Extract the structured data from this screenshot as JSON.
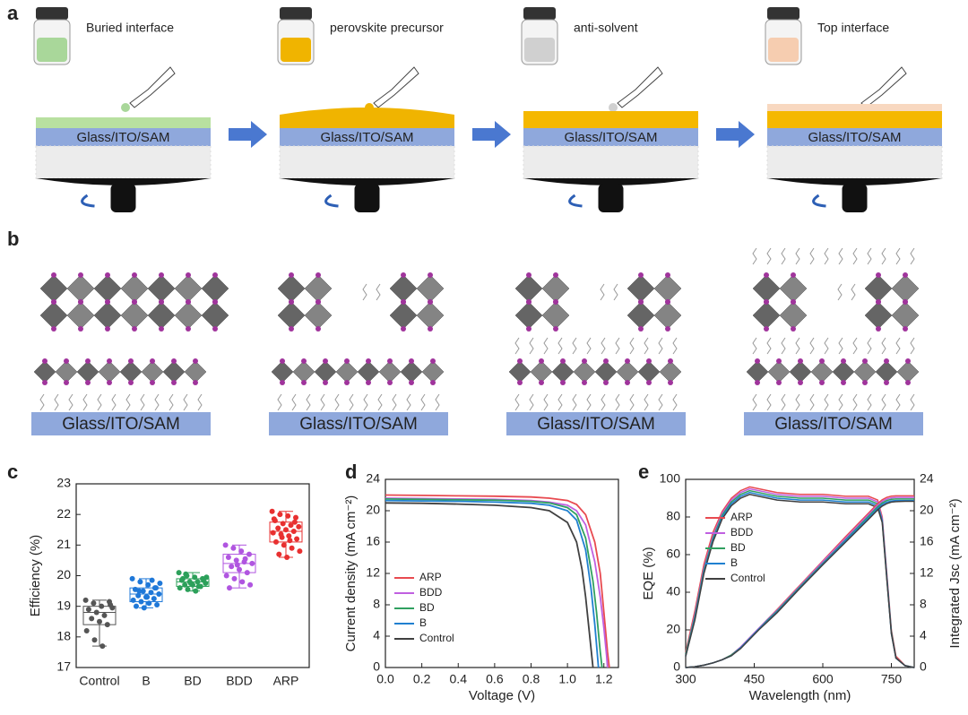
{
  "panel_labels": [
    "a",
    "b",
    "c",
    "d",
    "e"
  ],
  "schematic_a": {
    "steps": [
      "Buried interface",
      "perovskite precursor",
      "anti-solvent",
      "Top interface"
    ],
    "substrate_labels": [
      "Glass/ITO/SAM",
      "Glass/ITO/SAM",
      "Glass/ITO/SAM",
      "Glass/ITO/SAM"
    ]
  },
  "schematic_b": {
    "substrate_labels": [
      "Glass/ITO/SAM",
      "Glass/ITO/SAM",
      "Glass/ITO/SAM",
      "Glass/ITO/SAM"
    ]
  },
  "chart_data": [
    {
      "type": "box",
      "y_label": "Efficiency (%)",
      "categories": [
        "Control",
        "B",
        "BD",
        "BDD",
        "ARP"
      ],
      "colors": [
        "#555555",
        "#1f78d8",
        "#2ca05a",
        "#b055e0",
        "#e83030"
      ],
      "ylim": [
        17,
        23
      ],
      "yticks": [
        17,
        18,
        19,
        20,
        21,
        22,
        23
      ],
      "points": [
        [
          19.2,
          19.1,
          19.0,
          19.15,
          18.9,
          18.8,
          18.7,
          18.95,
          18.6,
          18.5,
          18.4,
          18.2,
          17.9,
          17.7,
          19.05
        ],
        [
          19.9,
          19.8,
          19.7,
          19.6,
          19.55,
          19.5,
          19.45,
          19.4,
          19.35,
          19.3,
          19.25,
          19.2,
          19.15,
          19.1,
          19.05,
          19.0,
          18.95,
          19.85,
          19.75,
          19.5,
          19.3,
          19.6
        ],
        [
          20.1,
          20.0,
          19.95,
          19.9,
          19.85,
          19.8,
          19.8,
          19.75,
          19.7,
          19.7,
          19.65,
          19.6,
          19.55,
          19.5,
          19.85,
          19.9,
          19.75,
          19.65,
          19.95,
          20.05
        ],
        [
          21.0,
          20.9,
          20.8,
          20.7,
          20.6,
          20.5,
          20.45,
          20.4,
          20.3,
          20.2,
          20.1,
          20.0,
          19.9,
          19.8,
          19.7,
          19.6,
          20.35,
          20.55
        ],
        [
          22.1,
          22.0,
          21.95,
          21.9,
          21.8,
          21.7,
          21.65,
          21.6,
          21.55,
          21.5,
          21.45,
          21.4,
          21.35,
          21.3,
          21.2,
          21.1,
          21.0,
          20.9,
          20.8,
          20.7,
          20.6,
          21.75,
          21.85,
          21.25,
          21.15
        ]
      ],
      "box": [
        {
          "min": 17.7,
          "q1": 18.4,
          "median": 18.8,
          "q3": 19.0,
          "max": 19.2
        },
        {
          "min": 18.95,
          "q1": 19.15,
          "median": 19.4,
          "q3": 19.6,
          "max": 19.9
        },
        {
          "min": 19.5,
          "q1": 19.65,
          "median": 19.8,
          "q3": 19.9,
          "max": 20.1
        },
        {
          "min": 19.6,
          "q1": 20.1,
          "median": 20.4,
          "q3": 20.7,
          "max": 21.0
        },
        {
          "min": 20.6,
          "q1": 21.1,
          "median": 21.45,
          "q3": 21.75,
          "max": 22.1
        }
      ]
    },
    {
      "type": "line",
      "x_label": "Voltage (V)",
      "y_label": "Current density (mA cm⁻²)",
      "xlim": [
        0,
        1.28
      ],
      "xticks": [
        {
          "value": 0,
          "label": "0.0"
        },
        0.2,
        0.4,
        0.6,
        0.8,
        {
          "value": 1,
          "label": "1.0"
        },
        1.2
      ],
      "ylim": [
        0,
        24
      ],
      "yticks": [
        0,
        4,
        8,
        12,
        16,
        20,
        24
      ],
      "legend": "center left",
      "series": [
        {
          "name": "ARP",
          "color": "#e84a50",
          "x": [
            0,
            0.2,
            0.4,
            0.6,
            0.8,
            0.9,
            1.0,
            1.05,
            1.1,
            1.15,
            1.18,
            1.2,
            1.22,
            1.23
          ],
          "values": [
            22.0,
            21.95,
            21.9,
            21.85,
            21.75,
            21.6,
            21.3,
            20.8,
            19.5,
            16.0,
            12.0,
            7.0,
            2.0,
            0
          ]
        },
        {
          "name": "BDD",
          "color": "#c060e0",
          "x": [
            0,
            0.2,
            0.4,
            0.6,
            0.8,
            0.9,
            1.0,
            1.05,
            1.1,
            1.15,
            1.18,
            1.2,
            1.215,
            1.22
          ],
          "values": [
            21.6,
            21.55,
            21.5,
            21.45,
            21.3,
            21.1,
            20.7,
            20.0,
            18.2,
            13.5,
            9.0,
            5.0,
            1.5,
            0
          ]
        },
        {
          "name": "BD",
          "color": "#30a060",
          "x": [
            0,
            0.2,
            0.4,
            0.6,
            0.8,
            0.9,
            1.0,
            1.05,
            1.1,
            1.14,
            1.16,
            1.18,
            1.19
          ],
          "values": [
            21.5,
            21.45,
            21.4,
            21.35,
            21.2,
            21.0,
            20.4,
            19.5,
            16.5,
            11.0,
            7.0,
            2.0,
            0
          ]
        },
        {
          "name": "B",
          "color": "#2080d0",
          "x": [
            0,
            0.2,
            0.4,
            0.6,
            0.8,
            0.9,
            1.0,
            1.05,
            1.1,
            1.13,
            1.15,
            1.165,
            1.17
          ],
          "values": [
            21.3,
            21.25,
            21.2,
            21.1,
            20.95,
            20.7,
            20.0,
            18.8,
            15.0,
            10.0,
            5.5,
            1.5,
            0
          ]
        },
        {
          "name": "Control",
          "color": "#404040",
          "x": [
            0,
            0.2,
            0.4,
            0.6,
            0.8,
            0.9,
            1.0,
            1.05,
            1.08,
            1.1,
            1.12,
            1.135,
            1.14
          ],
          "values": [
            21.0,
            20.95,
            20.85,
            20.7,
            20.4,
            20.0,
            18.5,
            16.0,
            12.5,
            9.0,
            4.5,
            1.2,
            0
          ]
        }
      ]
    },
    {
      "type": "dual",
      "x_label": "Wavelength (nm)",
      "y_label": "EQE (%)",
      "y2_label": "Integrated Jsc (mA cm⁻²)",
      "xlim": [
        300,
        800
      ],
      "xticks": [
        300,
        450,
        600,
        750
      ],
      "ylim": [
        0,
        100
      ],
      "yticks": [
        0,
        20,
        40,
        60,
        80,
        100
      ],
      "y2lim": [
        0,
        24
      ],
      "y2ticks": [
        0,
        4,
        8,
        12,
        16,
        20,
        24
      ],
      "legend": "upper left",
      "x": [
        300,
        320,
        340,
        360,
        380,
        400,
        420,
        440,
        460,
        480,
        500,
        550,
        600,
        650,
        700,
        720,
        730,
        740,
        750,
        760,
        780,
        800
      ],
      "series": [
        {
          "name": "ARP",
          "color": "#e84a50",
          "values": [
            8,
            30,
            55,
            72,
            83,
            90,
            94,
            96,
            95,
            94,
            93,
            92,
            92,
            91,
            91,
            89,
            80,
            50,
            20,
            6,
            1,
            0
          ]
        },
        {
          "name": "BDD",
          "color": "#c060e0",
          "values": [
            7,
            28,
            53,
            70,
            82,
            89,
            93,
            95,
            94,
            93,
            92,
            91,
            91,
            90,
            90,
            88,
            79,
            49,
            19,
            5,
            1,
            0
          ]
        },
        {
          "name": "BD",
          "color": "#30a060",
          "values": [
            7,
            27,
            52,
            69,
            81,
            88,
            92,
            94,
            93,
            92,
            91,
            90,
            90,
            89,
            89,
            87,
            78,
            48,
            19,
            5,
            1,
            0
          ]
        },
        {
          "name": "B",
          "color": "#2080d0",
          "values": [
            6,
            26,
            51,
            68,
            80,
            87,
            91,
            93,
            92,
            91,
            90,
            89,
            89,
            88,
            88,
            86,
            78,
            48,
            18,
            5,
            1,
            0
          ]
        },
        {
          "name": "Control",
          "color": "#404040",
          "values": [
            6,
            25,
            50,
            67,
            79,
            86,
            90,
            92,
            91,
            90,
            89,
            88,
            88,
            87,
            87,
            85,
            77,
            47,
            18,
            5,
            1,
            0
          ]
        }
      ],
      "jsc_series": [
        {
          "color": "#e84a50",
          "axis": "y2",
          "values": [
            0,
            0.1,
            0.3,
            0.6,
            1.0,
            1.6,
            2.6,
            3.8,
            5.0,
            6.2,
            7.4,
            10.5,
            13.6,
            16.7,
            19.7,
            20.9,
            21.4,
            21.7,
            21.85,
            21.9,
            21.9,
            21.9
          ]
        },
        {
          "color": "#c060e0",
          "axis": "y2",
          "values": [
            0,
            0.1,
            0.3,
            0.6,
            1.0,
            1.6,
            2.6,
            3.8,
            5.0,
            6.2,
            7.3,
            10.4,
            13.5,
            16.5,
            19.5,
            20.7,
            21.2,
            21.5,
            21.65,
            21.7,
            21.7,
            21.7
          ]
        },
        {
          "color": "#30a060",
          "axis": "y2",
          "values": [
            0,
            0.1,
            0.3,
            0.6,
            1.0,
            1.6,
            2.5,
            3.7,
            4.9,
            6.1,
            7.2,
            10.3,
            13.3,
            16.3,
            19.3,
            20.5,
            21.0,
            21.3,
            21.45,
            21.5,
            21.5,
            21.5
          ]
        },
        {
          "color": "#2080d0",
          "axis": "y2",
          "values": [
            0,
            0.1,
            0.3,
            0.6,
            1.0,
            1.5,
            2.5,
            3.7,
            4.9,
            6.0,
            7.1,
            10.2,
            13.2,
            16.2,
            19.1,
            20.3,
            20.8,
            21.1,
            21.25,
            21.3,
            21.3,
            21.3
          ]
        },
        {
          "color": "#404040",
          "axis": "y2",
          "values": [
            0,
            0.1,
            0.3,
            0.6,
            1.0,
            1.5,
            2.4,
            3.6,
            4.8,
            5.9,
            7.0,
            10.1,
            13.1,
            16.0,
            18.9,
            20.1,
            20.6,
            20.9,
            21.1,
            21.15,
            21.2,
            21.2
          ]
        }
      ]
    }
  ]
}
